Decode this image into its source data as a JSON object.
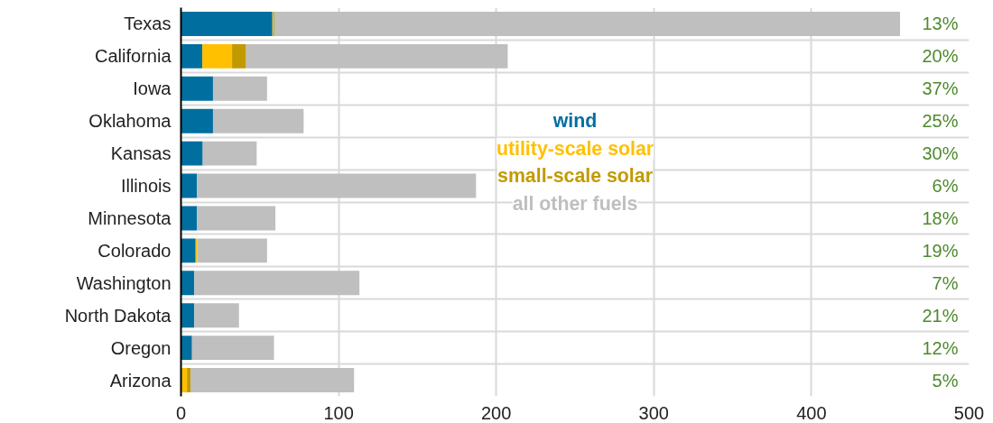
{
  "chart_data": {
    "type": "bar",
    "orientation": "horizontal",
    "stacked": true,
    "categories": [
      "Texas",
      "California",
      "Iowa",
      "Oklahoma",
      "Kansas",
      "Illinois",
      "Minnesota",
      "Colorado",
      "Washington",
      "North Dakota",
      "Oregon",
      "Arizona"
    ],
    "series": [
      {
        "name": "wind",
        "color": "#006f9f",
        "values": [
          58,
          13.5,
          20.3,
          20.3,
          13.8,
          10.2,
          10.2,
          9.3,
          8.4,
          8.4,
          7,
          0
        ]
      },
      {
        "name": "utility-scale solar",
        "color": "#ffc000",
        "values": [
          0.5,
          18.9,
          0,
          0,
          0,
          0,
          0,
          1,
          0,
          0,
          0,
          3.8
        ]
      },
      {
        "name": "small-scale solar",
        "color": "#c29a00",
        "values": [
          0.7,
          8.9,
          0,
          0,
          0,
          0,
          0,
          0,
          0,
          0,
          0,
          2.2
        ]
      },
      {
        "name": "all other fuels",
        "color": "#bfbfbf",
        "values": [
          397,
          166,
          34.3,
          57.5,
          34.2,
          177,
          49.7,
          44.3,
          104.8,
          28.4,
          52,
          103.8
        ]
      }
    ],
    "xlim": [
      0,
      500
    ],
    "xticks": [
      0,
      100,
      200,
      300,
      400,
      500
    ],
    "grid": true,
    "legend": "top",
    "annotations": [
      "13%",
      "20%",
      "37%",
      "25%",
      "30%",
      "6%",
      "18%",
      "19%",
      "7%",
      "21%",
      "12%",
      "5%"
    ]
  }
}
